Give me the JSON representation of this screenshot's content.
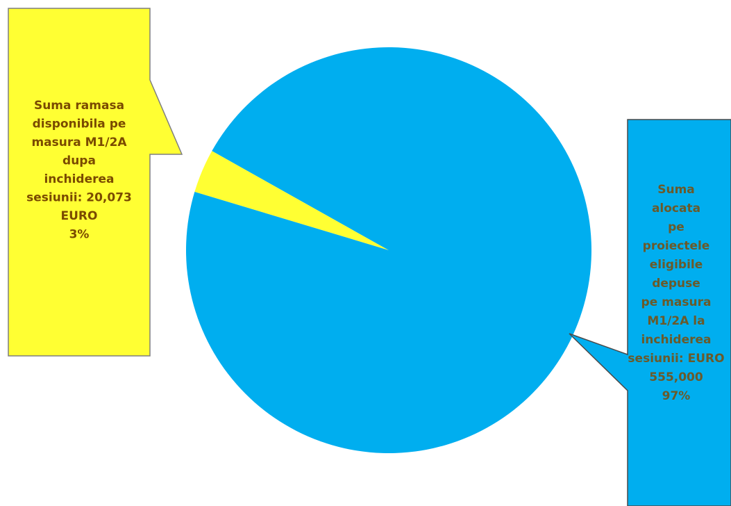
{
  "chart_data": {
    "type": "pie",
    "title": "",
    "slices": [
      {
        "value": 20073,
        "percent": 3,
        "color": "#FFFF33",
        "label_lines": [
          "Suma ramasa",
          "disponibila pe",
          "masura M1/2A",
          "dupa",
          "inchiderea",
          "sesiunii: 20,073",
          "EURO",
          "3%"
        ],
        "text_color": "#7a4a00"
      },
      {
        "value": 555000,
        "percent": 97,
        "color": "#00AEEF",
        "label_lines": [
          "Suma",
          "alocata",
          "pe",
          "proiectele",
          "eligibile",
          "depuse",
          "pe masura",
          "M1/2A la",
          "inchiderea",
          "sesiunii: EURO",
          "555,000",
          "97%"
        ],
        "text_color": "#6a5a2a"
      }
    ]
  }
}
